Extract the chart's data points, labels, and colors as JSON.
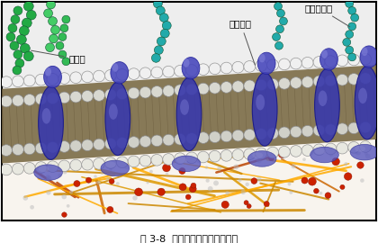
{
  "title_caption": "图 3-8  细胞膜亚显微结构模式图",
  "background_color": "#ffffff",
  "border_color": "#000000",
  "labels": {
    "glycoprotein": "糖蛋白",
    "phospholipid": "磷脂分子",
    "globular_protein": "蛋白质分子"
  },
  "figsize": [
    4.2,
    2.7
  ],
  "dpi": 100,
  "caption_fontsize": 8,
  "label_fontsize": 7.5,
  "membrane_color": "#7a6040",
  "membrane_dark": "#4a3520",
  "phospholipid_outer_color": "#e8e8e8",
  "phospholipid_inner_color": "#c8c8b8",
  "protein_blue": "#3a3aaa",
  "protein_highlight": "#7070cc",
  "protein_dark": "#1a1a88",
  "glyco_green1": "#22aa44",
  "glyco_green2": "#44cc66",
  "glyco_teal": "#22aaaa",
  "cytoskeleton_colors": [
    "#cc6600",
    "#dd9900",
    "#bb4400",
    "#ffaa00",
    "#cc8800"
  ],
  "cytoplasm_bg": "#f8f4ee",
  "extracell_bg": "#f0eeee",
  "red_dot_color": "#cc2200",
  "sm_dot_color": "#aaaaaa"
}
